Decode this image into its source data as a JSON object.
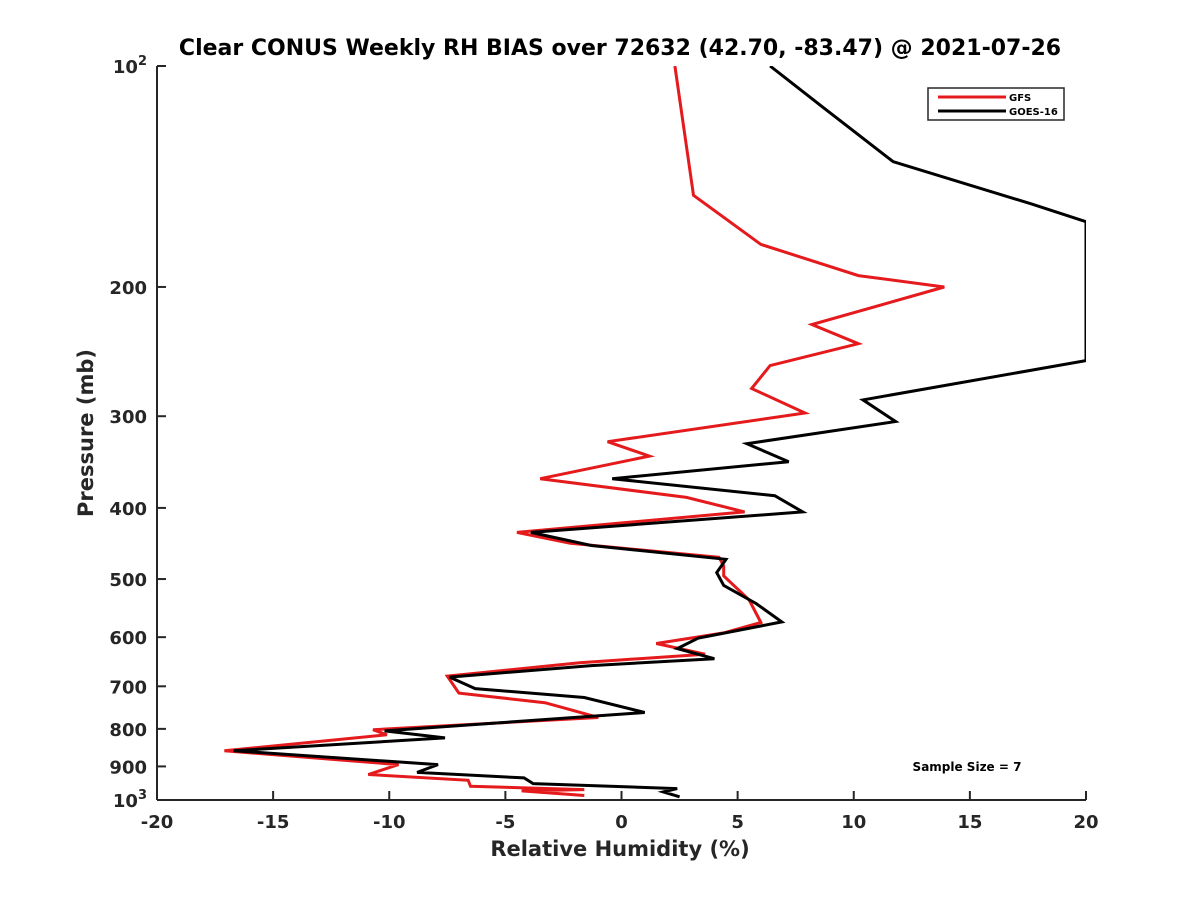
{
  "chart_data": {
    "type": "line",
    "title": "Clear CONUS Weekly RH BIAS over 72632 (42.70, -83.47) @ 2021-07-26",
    "xlabel": "Relative Humidity (%)",
    "ylabel": "Pressure (mb)",
    "xlim": [
      -20,
      20
    ],
    "ylim": [
      100,
      1000
    ],
    "y_scale": "log",
    "y_reversed": true,
    "x_ticks": [
      "-20",
      "-15",
      "-10",
      "-5",
      "0",
      "5",
      "10",
      "15",
      "20"
    ],
    "y_ticks": [
      {
        "value": 100,
        "label": "10",
        "sup": "2"
      },
      {
        "value": 200,
        "label": "200"
      },
      {
        "value": 300,
        "label": "300"
      },
      {
        "value": 400,
        "label": "400"
      },
      {
        "value": 500,
        "label": "500"
      },
      {
        "value": 600,
        "label": "600"
      },
      {
        "value": 700,
        "label": "700"
      },
      {
        "value": 800,
        "label": "800"
      },
      {
        "value": 900,
        "label": "900"
      },
      {
        "value": 1000,
        "label": "10",
        "sup": "3"
      }
    ],
    "grid": false,
    "legend_position": "top-right",
    "annotation": "Sample Size = 7",
    "series": [
      {
        "name": "GFS",
        "color": "#e41a1c",
        "points": [
          [
            2.3,
            100
          ],
          [
            3.1,
            150
          ],
          [
            6.0,
            175
          ],
          [
            10.2,
            193
          ],
          [
            13.9,
            200
          ],
          [
            8.2,
            225
          ],
          [
            10.2,
            239
          ],
          [
            6.4,
            256
          ],
          [
            5.6,
            275
          ],
          [
            7.9,
            297
          ],
          [
            -0.6,
            325
          ],
          [
            1.2,
            340
          ],
          [
            -3.5,
            365
          ],
          [
            2.8,
            387
          ],
          [
            5.3,
            405
          ],
          [
            -4.5,
            432
          ],
          [
            -2.2,
            447
          ],
          [
            4.2,
            467
          ],
          [
            4.4,
            480
          ],
          [
            4.4,
            495
          ],
          [
            5.5,
            534
          ],
          [
            6.0,
            573
          ],
          [
            4.4,
            592
          ],
          [
            1.5,
            612
          ],
          [
            3.6,
            633
          ],
          [
            -1.8,
            650
          ],
          [
            -7.5,
            678
          ],
          [
            -7.0,
            715
          ],
          [
            -3.3,
            737
          ],
          [
            -2.3,
            752
          ],
          [
            -1.0,
            772
          ],
          [
            -10.7,
            802
          ],
          [
            -10.1,
            815
          ],
          [
            -17.1,
            857
          ],
          [
            -9.6,
            895
          ],
          [
            -10.9,
            923
          ],
          [
            -6.6,
            940
          ],
          [
            -6.5,
            958
          ],
          [
            -1.6,
            968
          ],
          [
            -4.3,
            972
          ],
          [
            -1.6,
            986
          ]
        ]
      },
      {
        "name": "GOES-16",
        "color": "#000000",
        "points": [
          [
            6.4,
            100
          ],
          [
            8.7,
            114
          ],
          [
            11.7,
            135
          ],
          [
            17.6,
            154
          ],
          [
            20.0,
            163
          ],
          [
            20.0,
            252
          ],
          [
            10.4,
            285
          ],
          [
            11.8,
            305
          ],
          [
            5.4,
            327
          ],
          [
            7.2,
            346
          ],
          [
            -0.4,
            365
          ],
          [
            6.6,
            385
          ],
          [
            7.8,
            405
          ],
          [
            -3.9,
            432
          ],
          [
            -1.3,
            450
          ],
          [
            4.5,
            470
          ],
          [
            4.1,
            490
          ],
          [
            4.4,
            510
          ],
          [
            5.8,
            540
          ],
          [
            6.9,
            572
          ],
          [
            3.3,
            602
          ],
          [
            2.4,
            622
          ],
          [
            4.0,
            642
          ],
          [
            -1.3,
            656
          ],
          [
            -7.4,
            680
          ],
          [
            -6.3,
            705
          ],
          [
            -1.6,
            725
          ],
          [
            1.0,
            760
          ],
          [
            -10.2,
            805
          ],
          [
            -7.6,
            823
          ],
          [
            -16.7,
            857
          ],
          [
            -7.9,
            895
          ],
          [
            -8.8,
            917
          ],
          [
            -4.2,
            933
          ],
          [
            -3.8,
            950
          ],
          [
            2.4,
            965
          ],
          [
            1.8,
            975
          ],
          [
            2.5,
            990
          ]
        ]
      }
    ]
  }
}
